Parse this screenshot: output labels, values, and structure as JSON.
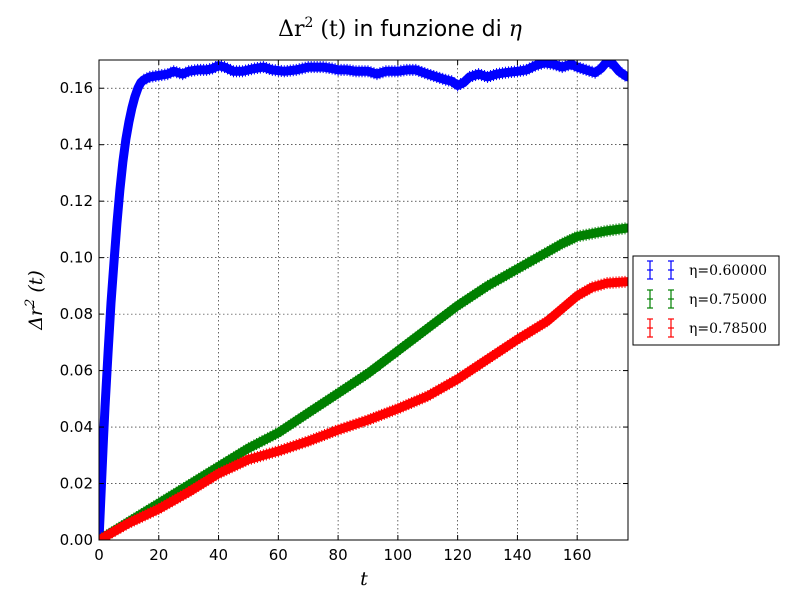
{
  "chart_data": {
    "type": "line",
    "title": {
      "pre": "Δr",
      "sup": "2",
      "post": " (t)",
      "words": " in funzione di ",
      "tail": "η"
    },
    "xlabel": "t",
    "ylabel": {
      "pre": "Δr",
      "sup": "2",
      "post": " (t)"
    },
    "xlim": [
      0,
      177
    ],
    "ylim": [
      0,
      0.17
    ],
    "xticks": [
      "0",
      "20",
      "40",
      "60",
      "80",
      "100",
      "120",
      "140",
      "160"
    ],
    "yticks": [
      "0.00",
      "0.02",
      "0.04",
      "0.06",
      "0.08",
      "0.10",
      "0.12",
      "0.14",
      "0.16"
    ],
    "grid": true,
    "legend_position": "outside-right",
    "series": [
      {
        "name": "η=0.60000",
        "color": "#0000ff",
        "marker": "errorbar",
        "points": [
          [
            0,
            0
          ],
          [
            0.5,
            0.012
          ],
          [
            1,
            0.024
          ],
          [
            1.5,
            0.036
          ],
          [
            2,
            0.047
          ],
          [
            3,
            0.066
          ],
          [
            4,
            0.084
          ],
          [
            5,
            0.098
          ],
          [
            6,
            0.112
          ],
          [
            7,
            0.124
          ],
          [
            8,
            0.134
          ],
          [
            9,
            0.142
          ],
          [
            10,
            0.148
          ],
          [
            11,
            0.153
          ],
          [
            12,
            0.157
          ],
          [
            13,
            0.16
          ],
          [
            14,
            0.162
          ],
          [
            15,
            0.163
          ],
          [
            17,
            0.164
          ],
          [
            20,
            0.1645
          ],
          [
            23,
            0.165
          ],
          [
            25,
            0.166
          ],
          [
            28,
            0.165
          ],
          [
            30,
            0.166
          ],
          [
            33,
            0.1665
          ],
          [
            36,
            0.1665
          ],
          [
            38,
            0.167
          ],
          [
            40,
            0.168
          ],
          [
            42,
            0.1675
          ],
          [
            45,
            0.166
          ],
          [
            48,
            0.166
          ],
          [
            52,
            0.167
          ],
          [
            55,
            0.1675
          ],
          [
            58,
            0.1665
          ],
          [
            62,
            0.166
          ],
          [
            66,
            0.1665
          ],
          [
            70,
            0.1675
          ],
          [
            75,
            0.1675
          ],
          [
            78,
            0.167
          ],
          [
            80,
            0.1665
          ],
          [
            83,
            0.1665
          ],
          [
            86,
            0.166
          ],
          [
            90,
            0.166
          ],
          [
            93,
            0.165
          ],
          [
            96,
            0.166
          ],
          [
            100,
            0.166
          ],
          [
            103,
            0.1665
          ],
          [
            106,
            0.1665
          ],
          [
            110,
            0.165
          ],
          [
            113,
            0.164
          ],
          [
            116,
            0.163
          ],
          [
            118,
            0.1625
          ],
          [
            120,
            0.161
          ],
          [
            122,
            0.162
          ],
          [
            124,
            0.164
          ],
          [
            127,
            0.165
          ],
          [
            130,
            0.164
          ],
          [
            133,
            0.165
          ],
          [
            136,
            0.1655
          ],
          [
            140,
            0.166
          ],
          [
            143,
            0.1665
          ],
          [
            146,
            0.168
          ],
          [
            149,
            0.169
          ],
          [
            152,
            0.1685
          ],
          [
            155,
            0.1675
          ],
          [
            158,
            0.1685
          ],
          [
            160,
            0.1675
          ],
          [
            163,
            0.1665
          ],
          [
            166,
            0.1655
          ],
          [
            168,
            0.167
          ],
          [
            170,
            0.1695
          ],
          [
            172,
            0.1685
          ],
          [
            174,
            0.166
          ],
          [
            176,
            0.1645
          ],
          [
            177,
            0.164
          ]
        ]
      },
      {
        "name": "η=0.75000",
        "color": "#008000",
        "marker": "errorbar",
        "points": [
          [
            0,
            0
          ],
          [
            10,
            0.0065
          ],
          [
            20,
            0.013
          ],
          [
            30,
            0.0195
          ],
          [
            40,
            0.026
          ],
          [
            50,
            0.0325
          ],
          [
            60,
            0.038
          ],
          [
            70,
            0.045
          ],
          [
            80,
            0.052
          ],
          [
            90,
            0.059
          ],
          [
            100,
            0.067
          ],
          [
            110,
            0.075
          ],
          [
            120,
            0.083
          ],
          [
            130,
            0.09
          ],
          [
            140,
            0.096
          ],
          [
            150,
            0.102
          ],
          [
            155,
            0.105
          ],
          [
            160,
            0.1075
          ],
          [
            165,
            0.1085
          ],
          [
            170,
            0.1095
          ],
          [
            177,
            0.1105
          ]
        ]
      },
      {
        "name": "η=0.78500",
        "color": "#ff0000",
        "marker": "errorbar",
        "points": [
          [
            0,
            0
          ],
          [
            10,
            0.006
          ],
          [
            20,
            0.011
          ],
          [
            30,
            0.017
          ],
          [
            40,
            0.0235
          ],
          [
            50,
            0.0285
          ],
          [
            60,
            0.0315
          ],
          [
            70,
            0.035
          ],
          [
            80,
            0.039
          ],
          [
            90,
            0.0425
          ],
          [
            100,
            0.0465
          ],
          [
            110,
            0.051
          ],
          [
            120,
            0.057
          ],
          [
            130,
            0.064
          ],
          [
            140,
            0.071
          ],
          [
            150,
            0.0775
          ],
          [
            155,
            0.082
          ],
          [
            160,
            0.0865
          ],
          [
            165,
            0.0895
          ],
          [
            170,
            0.091
          ],
          [
            177,
            0.0915
          ]
        ]
      }
    ]
  }
}
